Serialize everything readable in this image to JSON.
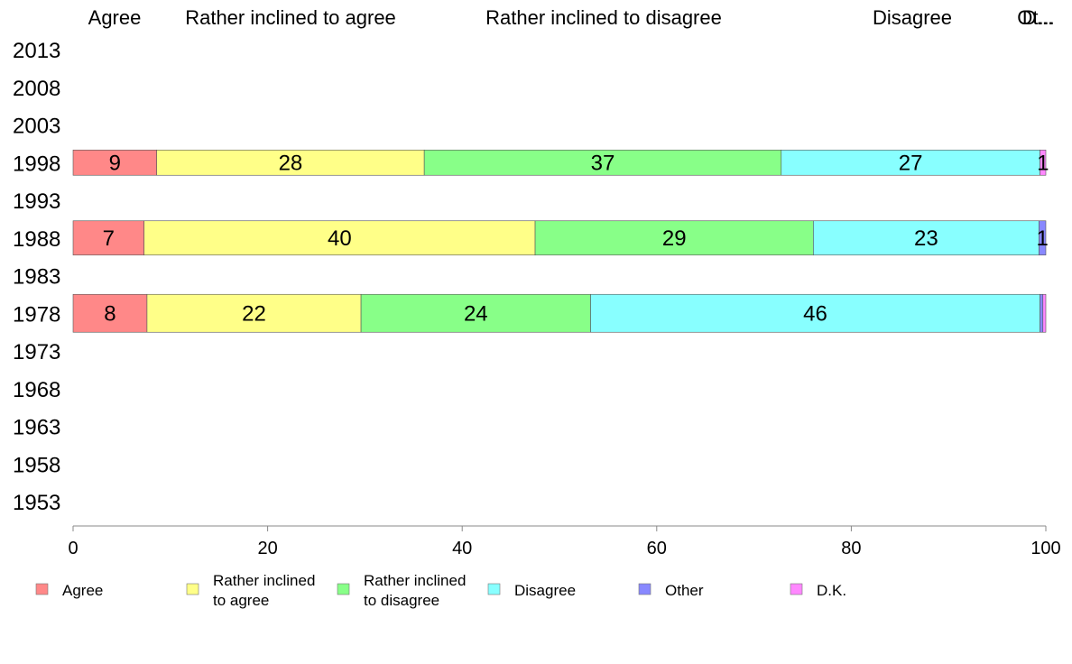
{
  "chart_data": {
    "type": "bar",
    "orientation": "horizontal",
    "stacked": true,
    "title": "",
    "xlabel": "",
    "ylabel": "",
    "xlim": [
      0,
      100
    ],
    "x_ticks": [
      "0",
      "20",
      "40",
      "60",
      "80",
      "100"
    ],
    "top_labels": [
      "Agree",
      "Rather inclined to agree",
      "Rather inclined to disagree",
      "Disagree",
      "Ot...",
      "D..."
    ],
    "y_categories": [
      "2013",
      "2008",
      "2003",
      "1998",
      "1993",
      "1988",
      "1983",
      "1978",
      "1973",
      "1968",
      "1963",
      "1958",
      "1953"
    ],
    "series": [
      {
        "name": "Agree",
        "legend": [
          "Agree"
        ],
        "color": "#ff8888"
      },
      {
        "name": "Rather inclined to agree",
        "legend": [
          "Rather inclined",
          "to agree"
        ],
        "color": "#ffff88"
      },
      {
        "name": "Rather inclined to disagree",
        "legend": [
          "Rather inclined",
          "to disagree"
        ],
        "color": "#88ff88"
      },
      {
        "name": "Disagree",
        "legend": [
          "Disagree"
        ],
        "color": "#88ffff"
      },
      {
        "name": "Other",
        "legend": [
          "Other"
        ],
        "color": "#8888ff"
      },
      {
        "name": "D.K.",
        "legend": [
          "D.K."
        ],
        "color": "#ff88ff"
      }
    ],
    "bars": [
      {
        "year": "1998",
        "values": [
          8.6,
          27.5,
          36.7,
          26.6,
          0,
          0.6
        ],
        "labels": [
          "9",
          "28",
          "37",
          "27",
          "",
          "1"
        ]
      },
      {
        "year": "1988",
        "values": [
          7.3,
          40.2,
          28.6,
          23.2,
          0.7,
          0
        ],
        "labels": [
          "7",
          "40",
          "29",
          "23",
          "1",
          ""
        ]
      },
      {
        "year": "1978",
        "values": [
          7.6,
          22.0,
          23.6,
          46.2,
          0.3,
          0.3
        ],
        "labels": [
          "8",
          "22",
          "24",
          "46",
          "",
          ""
        ]
      }
    ]
  }
}
